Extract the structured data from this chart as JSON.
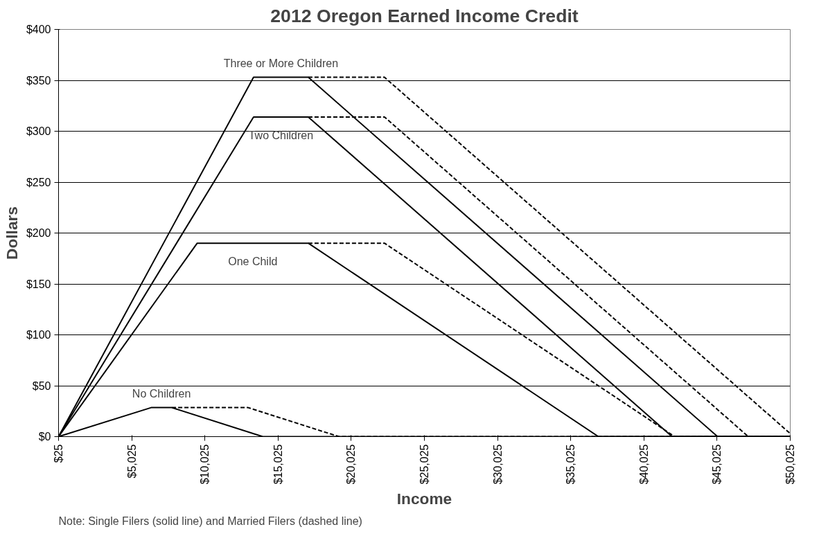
{
  "chart_data": {
    "type": "line",
    "title": "2012 Oregon Earned Income Credit",
    "xlabel": "Income",
    "ylabel": "Dollars",
    "xlim": [
      25,
      50025
    ],
    "ylim": [
      0,
      400
    ],
    "xticks": [
      {
        "value": 25,
        "label": "$25"
      },
      {
        "value": 5025,
        "label": "$5,025"
      },
      {
        "value": 10025,
        "label": "$10,025"
      },
      {
        "value": 15025,
        "label": "$15,025"
      },
      {
        "value": 20025,
        "label": "$20,025"
      },
      {
        "value": 25025,
        "label": "$25,025"
      },
      {
        "value": 30025,
        "label": "$30,025"
      },
      {
        "value": 35025,
        "label": "$35,025"
      },
      {
        "value": 40025,
        "label": "$40,025"
      },
      {
        "value": 45025,
        "label": "$45,025"
      },
      {
        "value": 50025,
        "label": "$50,025"
      }
    ],
    "yticks": [
      {
        "value": 0,
        "label": "$0"
      },
      {
        "value": 50,
        "label": "$50"
      },
      {
        "value": 100,
        "label": "$100"
      },
      {
        "value": 150,
        "label": "$150"
      },
      {
        "value": 200,
        "label": "$200"
      },
      {
        "value": 250,
        "label": "$250"
      },
      {
        "value": 300,
        "label": "$300"
      },
      {
        "value": 350,
        "label": "$350"
      },
      {
        "value": 400,
        "label": "$400"
      }
    ],
    "grid": "y",
    "marker": "none",
    "tick_labels": "xy",
    "series": [
      {
        "name": "No Children",
        "color": "#000000",
        "line_style": "solid",
        "x": [
          25,
          6350,
          7770,
          13980,
          50025
        ],
        "values": [
          0,
          28.5,
          28.5,
          0,
          0
        ]
      },
      {
        "color": "#000000",
        "line_style": "dashed",
        "x": [
          7770,
          12980,
          19190,
          50025
        ],
        "values": [
          28.5,
          28.5,
          0,
          0
        ]
      },
      {
        "name": "One Child",
        "color": "#000000",
        "line_style": "solid",
        "x": [
          25,
          9500,
          17090,
          36920,
          50025
        ],
        "values": [
          0,
          190,
          190,
          0,
          0
        ]
      },
      {
        "color": "#000000",
        "line_style": "dashed",
        "x": [
          17090,
          22300,
          42130,
          50025
        ],
        "values": [
          190,
          190,
          0,
          0
        ]
      },
      {
        "name": "Two Children",
        "color": "#000000",
        "line_style": "solid",
        "x": [
          25,
          13350,
          17090,
          41950,
          50025
        ],
        "values": [
          0,
          314,
          314,
          0,
          0
        ]
      },
      {
        "color": "#000000",
        "line_style": "dashed",
        "x": [
          17090,
          22300,
          47160,
          50025
        ],
        "values": [
          314,
          314,
          0,
          0
        ]
      },
      {
        "name": "Three or More Children",
        "color": "#000000",
        "line_style": "solid",
        "x": [
          25,
          13350,
          17090,
          45060,
          50025
        ],
        "values": [
          0,
          353,
          353,
          0,
          0
        ]
      },
      {
        "color": "#000000",
        "line_style": "dashed",
        "x": [
          17090,
          22300,
          50025
        ],
        "values": [
          353,
          353,
          3
        ]
      }
    ],
    "annotations": [
      "Note: Single Filers (solid line) and Married Filers (dashed line)"
    ]
  }
}
